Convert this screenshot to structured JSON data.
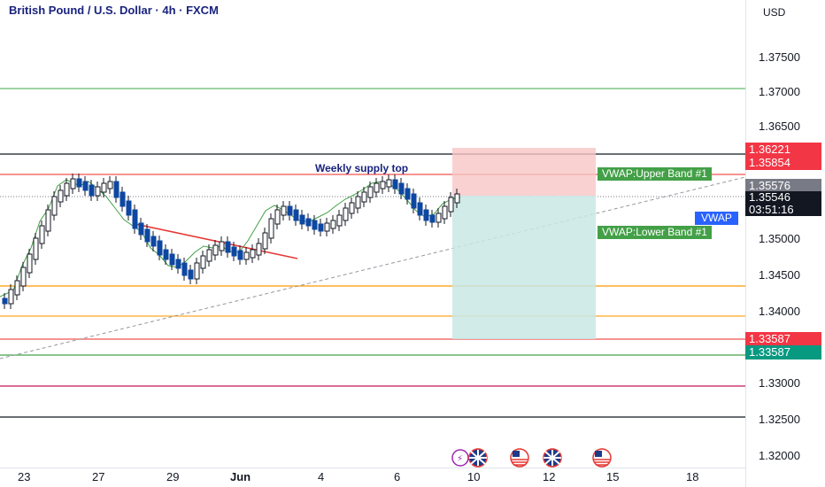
{
  "header": {
    "title": "British Pound / U.S. Dollar · 4h · FXCM",
    "currency": "USD"
  },
  "annotations": {
    "supply_label": "Weekly supply top"
  },
  "price_scale": {
    "ticks": [
      "1.37500",
      "1.37000",
      "1.36500",
      "1.35000",
      "1.34500",
      "1.34000",
      "1.33000",
      "1.32500",
      "1.32000"
    ]
  },
  "time_scale": {
    "ticks": [
      "23",
      "27",
      "29",
      "Jun",
      "4",
      "6",
      "10",
      "12",
      "15",
      "18"
    ]
  },
  "price_labels": [
    {
      "value": "1.36221",
      "color": "#f23645"
    },
    {
      "value": "1.35854",
      "color": "#f23645"
    },
    {
      "value": "1.35576",
      "color": "#787b86"
    },
    {
      "value": "1.35546",
      "color": "#131722",
      "sub": "03:51:16"
    },
    {
      "value": "1.33587",
      "color": "#f23645"
    },
    {
      "value": "1.33587",
      "color": "#089981"
    }
  ],
  "indicator_labels": {
    "upper_band": "VWAP:Upper Band #1",
    "lower_band": "VWAP:Lower Band #1",
    "vwap": "VWAP"
  },
  "colors": {
    "candle": "#0d47a1",
    "upper_band_bg": "#43a047",
    "lower_band_bg": "#43a047",
    "vwap_bg": "#2962ff",
    "stop_zone": "#f7c5c5",
    "target_zone": "#c8e8e4",
    "orange_line": "#ff9800",
    "red_line": "#ef5350",
    "green_line": "#66bb6a",
    "magenta_line": "#c2185b"
  },
  "event_icons": [
    "lightning-icon",
    "uk-flag-icon",
    "us-flag-icon",
    "uk-flag-icon",
    "us-flag-icon"
  ]
}
